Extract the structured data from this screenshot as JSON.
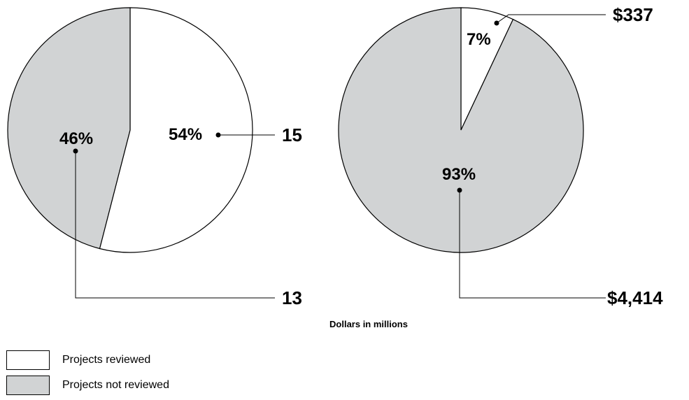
{
  "chart_data": [
    {
      "type": "pie",
      "series": [
        {
          "name": "Projects reviewed",
          "percent": 54,
          "label": "54%",
          "callout": "15",
          "value": 15
        },
        {
          "name": "Projects not reviewed",
          "percent": 46,
          "label": "46%",
          "callout": "13",
          "value": 13
        }
      ]
    },
    {
      "type": "pie",
      "note": "Dollars in millions",
      "series": [
        {
          "name": "Projects reviewed",
          "percent": 7,
          "label": "7%",
          "callout": "$337",
          "value": 337
        },
        {
          "name": "Projects not reviewed",
          "percent": 93,
          "label": "93%",
          "callout": "$4,414",
          "value": 4414
        }
      ]
    }
  ],
  "legend": {
    "items": [
      {
        "label": "Projects reviewed",
        "color": "#ffffff"
      },
      {
        "label": "Projects not reviewed",
        "color": "#d1d3d4"
      }
    ]
  },
  "colors": {
    "reviewed": "#ffffff",
    "not_reviewed": "#d1d3d4",
    "stroke": "#000000"
  }
}
